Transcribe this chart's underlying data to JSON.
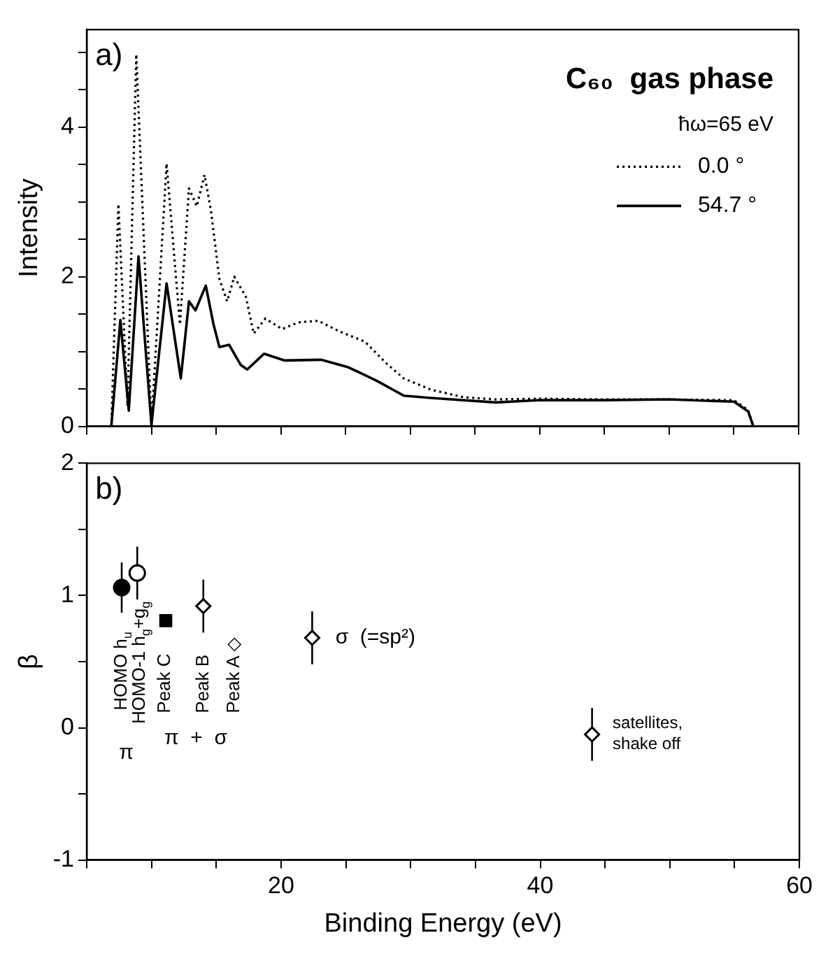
{
  "chart_data": [
    {
      "type": "line",
      "title": "C₆₀  gas phase",
      "legend_title": "ħω=65 eV",
      "ylabel": "Intensity",
      "annotations": [
        "a)"
      ],
      "legend": "top right",
      "tick_labels": "y",
      "xlim": [
        5,
        60
      ],
      "xticks": [
        {
          "value": 5,
          "label": null
        },
        {
          "value": 10,
          "label": null
        },
        {
          "value": 15,
          "label": null
        },
        {
          "value": 20,
          "label": null
        },
        {
          "value": 25,
          "label": null
        },
        {
          "value": 30,
          "label": null
        },
        {
          "value": 35,
          "label": null
        },
        {
          "value": 40,
          "label": null
        },
        {
          "value": 45,
          "label": null
        },
        {
          "value": 50,
          "label": null
        },
        {
          "value": 55,
          "label": null
        },
        {
          "value": 60,
          "label": null
        }
      ],
      "ylim": [
        0,
        5.3
      ],
      "yticks": [
        0,
        {
          "value": 0.5,
          "label": null
        },
        {
          "value": 1,
          "label": null
        },
        {
          "value": 1.5,
          "label": null
        },
        2,
        {
          "value": 2.5,
          "label": null
        },
        {
          "value": 3,
          "label": null
        },
        {
          "value": 3.5,
          "label": null
        },
        4,
        {
          "value": 4.5,
          "label": null
        },
        {
          "value": 5,
          "label": null
        }
      ],
      "series": [
        {
          "name": "0.0 °",
          "color": "#000000",
          "line_style": "dotted",
          "x": [
            6.9,
            7.45,
            8.15,
            8.83,
            10.0,
            11.17,
            12.2,
            12.9,
            13.5,
            14.1,
            14.6,
            15.25,
            15.85,
            16.4,
            17.3,
            17.9,
            18.8,
            20.1,
            21.35,
            22.9,
            24.5,
            26.5,
            28.1,
            29.5,
            31.6,
            34.1,
            36.6,
            40,
            45,
            50,
            55,
            56.1,
            56.5
          ],
          "values": [
            0,
            2.97,
            0.27,
            4.97,
            0.02,
            3.51,
            1.36,
            3.18,
            2.94,
            3.36,
            2.88,
            1.97,
            1.67,
            2.0,
            1.73,
            1.24,
            1.44,
            1.3,
            1.39,
            1.41,
            1.27,
            1.13,
            0.85,
            0.64,
            0.49,
            0.39,
            0.36,
            0.37,
            0.36,
            0.36,
            0.35,
            0.22,
            0
          ]
        },
        {
          "name": "54.7 °",
          "color": "#000000",
          "line_style": "solid",
          "x": [
            6.9,
            7.6,
            8.25,
            9.0,
            10.0,
            11.17,
            12.27,
            12.9,
            13.4,
            14.2,
            14.8,
            15.25,
            16.0,
            16.9,
            17.4,
            18.7,
            20.3,
            23.1,
            25.2,
            27.4,
            29.5,
            31.6,
            36.6,
            40,
            45,
            50,
            55,
            56.1,
            56.5
          ],
          "values": [
            0,
            1.42,
            0.21,
            2.27,
            0.02,
            1.91,
            0.64,
            1.67,
            1.55,
            1.88,
            1.36,
            1.06,
            1.09,
            0.82,
            0.76,
            0.97,
            0.88,
            0.89,
            0.79,
            0.61,
            0.41,
            0.38,
            0.32,
            0.35,
            0.35,
            0.36,
            0.33,
            0.2,
            0
          ]
        }
      ]
    },
    {
      "type": "scatter",
      "xlabel": "Binding Energy (eV)",
      "ylabel": "β",
      "annotations": [
        "b)",
        "HOMO h$_{u}$",
        "HOMO-1 h$_{g}$+g$_{g}$",
        "Peak C",
        "Peak B",
        "Peak A ◇",
        "π",
        "π  +  σ",
        "σ  (=sp²)",
        "satellites,\nshake off"
      ],
      "xlim": [
        5,
        60
      ],
      "xticks": [
        {
          "value": 5,
          "label": null
        },
        {
          "value": 10,
          "label": null
        },
        {
          "value": 15,
          "label": null
        },
        20,
        {
          "value": 25,
          "label": null
        },
        {
          "value": 30,
          "label": null
        },
        {
          "value": 35,
          "label": null
        },
        40,
        {
          "value": 45,
          "label": null
        },
        {
          "value": 50,
          "label": null
        },
        {
          "value": 55,
          "label": null
        },
        60
      ],
      "ylim": [
        -1,
        2
      ],
      "yticks": [
        -1,
        {
          "value": -0.5,
          "label": null
        },
        0,
        {
          "value": 0.5,
          "label": null
        },
        1,
        {
          "value": 1.5,
          "label": null
        },
        2
      ],
      "series": [
        {
          "color": "#000000",
          "marker": "circle",
          "x": [
            7.7
          ],
          "values": [
            1.06
          ],
          "errors": [
            0.19
          ]
        },
        {
          "color": "#000000",
          "marker": "circle",
          "x": [
            8.9
          ],
          "values": [
            1.17
          ],
          "errors": [
            0.2
          ]
        },
        {
          "color": "#000000",
          "marker": "square",
          "x": [
            11.1
          ],
          "values": [
            0.81
          ]
        },
        {
          "color": "#000000",
          "marker": "diamond",
          "x": [
            14.0,
            22.4,
            44.0
          ],
          "values": [
            0.92,
            0.68,
            -0.05
          ],
          "errors": [
            0.2,
            0.2,
            0.2
          ]
        }
      ]
    }
  ]
}
